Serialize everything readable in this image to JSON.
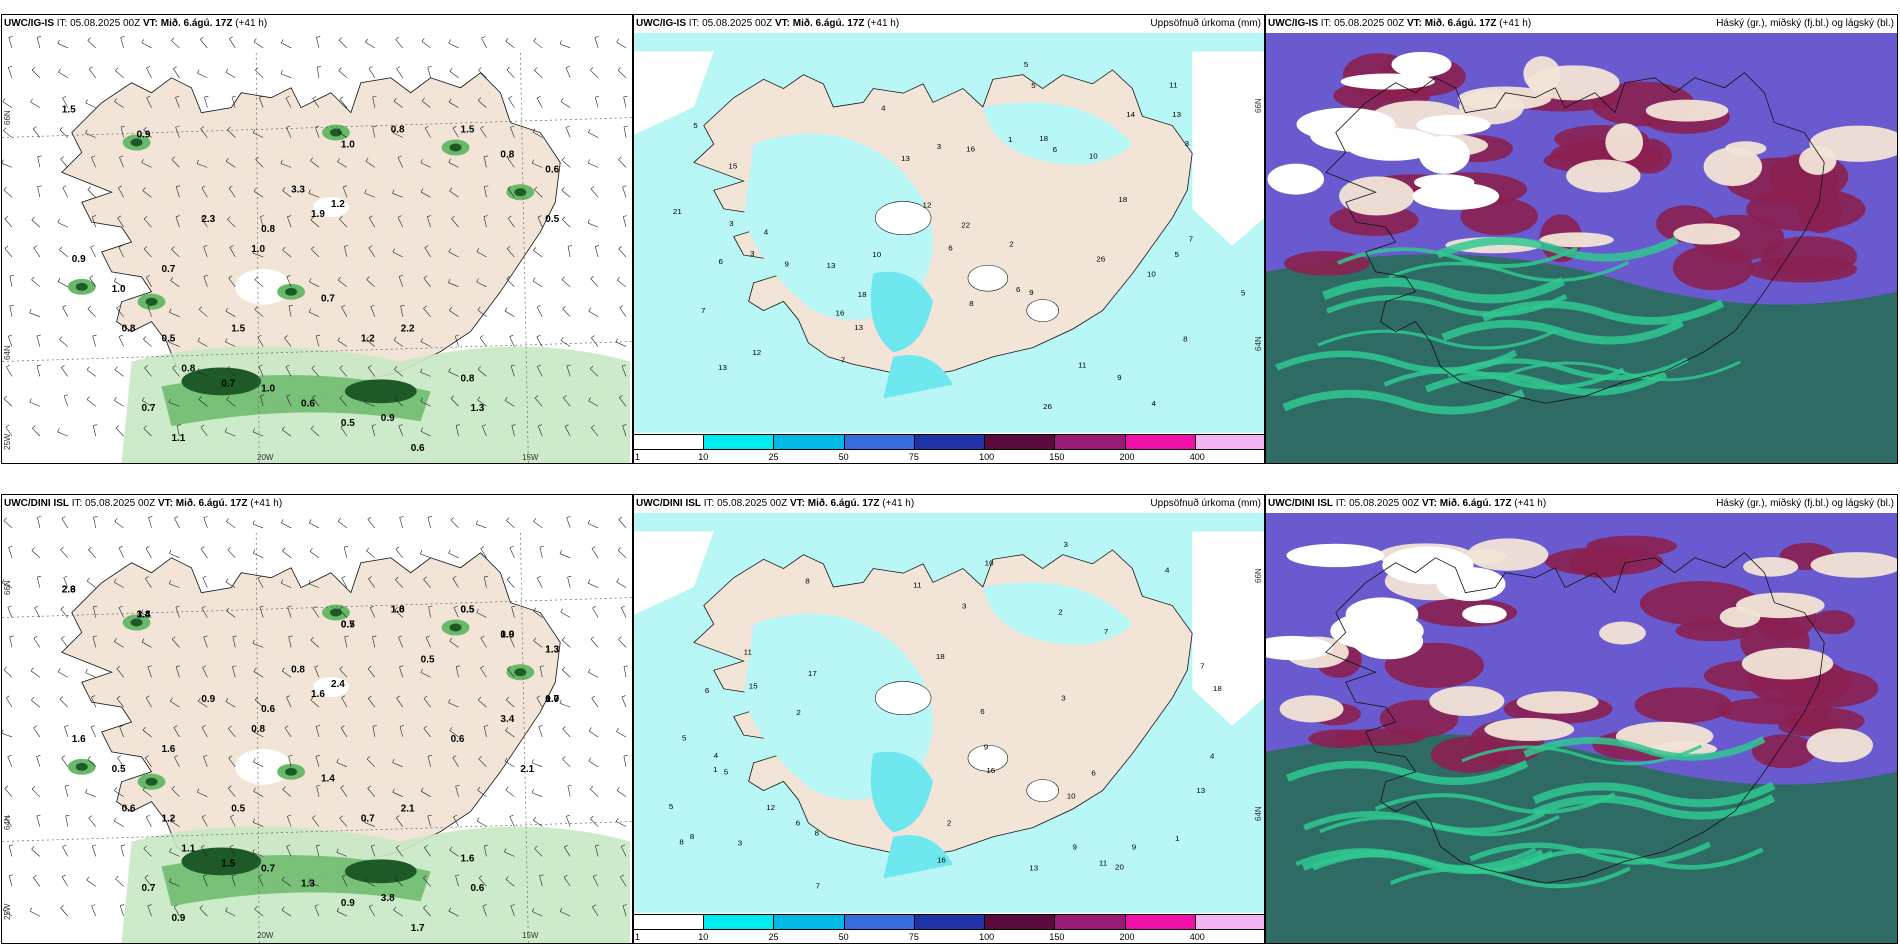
{
  "panels": [
    {
      "model": "UWC/IG-IS",
      "it_label": "IT:",
      "it_value": "05.08.2025 00Z",
      "vt_label": "VT:",
      "vt_value": "Mið. 6.ágú. 17Z",
      "lead": "(+41 h)",
      "right_title": "",
      "lat_labels": [
        "66N",
        "64N",
        "25W"
      ],
      "lon_labels": [
        "20W",
        "15W"
      ],
      "values": [
        "1.5",
        "0.9",
        "1.0",
        "0.8",
        "1.5",
        "0.8",
        "0.6",
        "0.5",
        "1.2",
        "1.0",
        "0.7",
        "0.9",
        "1.0",
        "0.8",
        "0.5",
        "0.8",
        "0.7",
        "1.0",
        "0.6",
        "0.5",
        "0.9",
        "0.6",
        "0.7",
        "1.1",
        "0.8",
        "1.3",
        "1.5",
        "0.7",
        "1.2",
        "2.2",
        "0.8",
        "3.3",
        "1.9",
        "2.3"
      ]
    },
    {
      "model": "UWC/IG-IS",
      "it_label": "IT:",
      "it_value": "05.08.2025 00Z",
      "vt_label": "VT:",
      "vt_value": "Mið. 6.ágú. 17Z",
      "lead": "(+41 h)",
      "right_title": "Uppsöfnuð úrkoma (mm)",
      "lat_labels": [
        "66N",
        "64N"
      ],
      "values": [
        "4",
        "3",
        "6",
        "5",
        "8",
        "15",
        "12",
        "13",
        "10",
        "3",
        "6",
        "9",
        "13",
        "4",
        "2",
        "7",
        "26",
        "22",
        "21",
        "13",
        "11",
        "16",
        "18",
        "5",
        "7",
        "3",
        "9",
        "6",
        "12",
        "13",
        "9",
        "6",
        "16",
        "18",
        "13",
        "10",
        "5",
        "11",
        "14",
        "26",
        "18",
        "8",
        "7",
        "5",
        "10",
        "4",
        "3",
        "5",
        "1"
      ],
      "colorbar_ticks": [
        "1",
        "10",
        "25",
        "50",
        "75",
        "100",
        "150",
        "200",
        "400"
      ]
    },
    {
      "model": "UWC/IG-IS",
      "it_label": "IT:",
      "it_value": "05.08.2025 00Z",
      "vt_label": "VT:",
      "vt_value": "Mið. 6.ágú. 17Z",
      "lead": "(+41 h)",
      "right_title": "Háský (gr.), miðský (fj.bl.) og lágský (bl.)"
    },
    {
      "model": "UWC/DINI ISL",
      "it_label": "IT:",
      "it_value": "05.08.2025 00Z",
      "vt_label": "VT:",
      "vt_value": "Mið. 6.ágú. 17Z",
      "lead": "(+41 h)",
      "right_title": "",
      "lat_labels": [
        "66N",
        "64N",
        "25W"
      ],
      "lon_labels": [
        "20W",
        "15W"
      ],
      "values": [
        "2.3",
        "1.4",
        "0.5",
        "1.8",
        "0.5",
        "1.0",
        "1.3",
        "0.7",
        "2.4",
        "0.8",
        "1.6",
        "1.6",
        "0.5",
        "0.6",
        "1.2",
        "1.1",
        "1.5",
        "0.7",
        "1.3",
        "0.9",
        "3.8",
        "1.7",
        "0.7",
        "0.9",
        "1.6",
        "0.6",
        "0.5",
        "1.4",
        "0.7",
        "2.1",
        "0.6",
        "0.8",
        "1.6",
        "0.9",
        "0.5",
        "0.6",
        "3.4",
        "2.1",
        "2.6",
        "3.8",
        "0.7",
        "1.0",
        "0.5",
        "0.9",
        "1.3",
        "1.0"
      ]
    },
    {
      "model": "UWC/DINI ISL",
      "it_label": "IT:",
      "it_value": "05.08.2025 00Z",
      "vt_label": "VT:",
      "vt_value": "Mið. 6.ágú. 17Z",
      "lead": "(+41 h)",
      "right_title": "Uppsöfnuð úrkoma (mm)",
      "lat_labels": [
        "66N",
        "64N"
      ],
      "values": [
        "3",
        "2",
        "10",
        "8",
        "6",
        "5",
        "13",
        "12",
        "8",
        "11",
        "7",
        "9",
        "18",
        "4",
        "3",
        "20",
        "8",
        "9",
        "7",
        "6",
        "13",
        "11",
        "16",
        "17",
        "10",
        "9",
        "7",
        "5",
        "15",
        "16",
        "18",
        "4",
        "6",
        "8",
        "2",
        "1",
        "3",
        "11",
        "6",
        "5",
        "2",
        "3",
        "4",
        "1"
      ],
      "colorbar_ticks": [
        "1",
        "10",
        "25",
        "50",
        "75",
        "100",
        "150",
        "200",
        "400"
      ]
    },
    {
      "model": "UWC/DINI ISL",
      "it_label": "IT:",
      "it_value": "05.08.2025 00Z",
      "vt_label": "VT:",
      "vt_value": "Mið. 6.ágú. 17Z",
      "lead": "(+41 h)",
      "right_title": "Háský (gr.), miðský (fj.bl.) og lágský (bl.)"
    }
  ],
  "colors": {
    "land": "#f2e4d6",
    "precip_light": "#b9f6f6",
    "precip_mid": "#6ee8ee",
    "green_light": "#c8e8c4",
    "green_mid": "#6ab86a",
    "green_dark": "#1e5a28",
    "cloud_high": "#2d6b64",
    "cloud_mid": "#6a5ad0",
    "cloud_low": "#8b2050",
    "cloud_teal": "#30c890",
    "colorbar": [
      "#ffffff",
      "#00ebf0",
      "#00b9e6",
      "#3a6ae0",
      "#2032a8",
      "#5a0a3c",
      "#9a1a78",
      "#ee10a8",
      "#f2b4f2"
    ]
  }
}
